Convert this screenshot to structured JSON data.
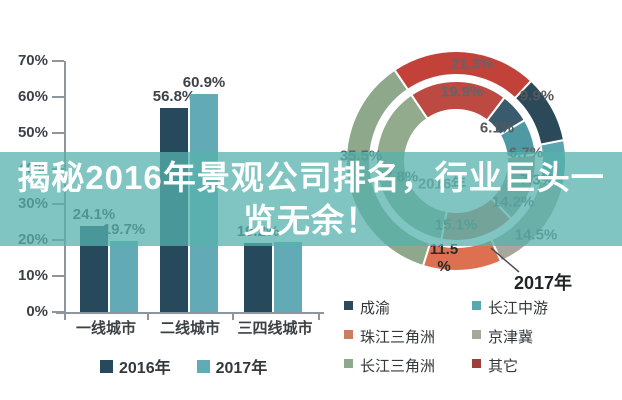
{
  "overlay": {
    "full_title": "揭秘2016年景观公司排名，行业巨头一览无余！",
    "line1": "揭秘2016年景观公司排名，行业巨头一",
    "line2": "览无余！",
    "band_color_rgba": "rgba(85,177,172,0.75)",
    "text_color": "#ffffff"
  },
  "chart_data": [
    {
      "type": "bar",
      "title": "",
      "categories": [
        "一线城市",
        "二线城市",
        "三四线城市"
      ],
      "series": [
        {
          "name": "2016年",
          "color": "#26495b",
          "values": [
            24.1,
            56.8,
            19.2
          ],
          "labels": [
            "24.1%",
            "56.8%",
            "19.2%"
          ]
        },
        {
          "name": "2017年",
          "color": "#63aab7",
          "values": [
            19.7,
            60.9,
            19.5
          ],
          "labels": [
            "19.7%",
            "60.9%",
            ""
          ]
        }
      ],
      "ylim": [
        0,
        70
      ],
      "yticks": [
        "70%",
        "60%",
        "50%",
        "40%",
        "30%",
        "20%",
        "10%",
        "0%"
      ],
      "grid": "off",
      "legend_position": "bottom",
      "legend": [
        {
          "label": "2016年",
          "color": "#26495b"
        },
        {
          "label": "2017年",
          "color": "#63aab7"
        }
      ]
    },
    {
      "type": "pie",
      "subtype": "double_donut",
      "start_angle_deg": -34,
      "categories": [
        "其它",
        "成渝",
        "长江中游",
        "京津冀",
        "珠江三角洲",
        "长江三角洲"
      ],
      "rings": [
        {
          "name": "2017年",
          "position": "outer",
          "values": [
            21.3,
            9.9,
            6.7,
            14.5,
            11.5,
            35.5
          ],
          "colors": [
            "#c2423a",
            "#2c4959",
            "#5aa7b0",
            "#a9a69c",
            "#dd7050",
            "#8da88a"
          ]
        },
        {
          "name": "2016年",
          "position": "inner",
          "values": [
            19.9,
            6.1,
            7.3,
            14.2,
            15.1,
            37.8
          ],
          "colors": [
            "#bd4a42",
            "#3a5b6d",
            "#4f99a4",
            "#a29d91",
            "#cd7c62",
            "#92ab8d"
          ]
        }
      ],
      "labels": {
        "outer_qita": "21.3%",
        "inner_qita": "19.9%",
        "outer_chengyu": "9.9%",
        "inner_chengyu": "6.1%",
        "outer_changjiangzhongyou": "6.7%",
        "inner_changjiangzhongyou": "7.3%",
        "inner_jingjinji": "14.2%",
        "outer_jingjinji": "14.5%",
        "inner_zhujiang": "15.1%",
        "outer_zhujiang_value": "11.5",
        "outer_zhujiang_percent": "%",
        "outer_changsanjiao": "35.5%",
        "inner_changsanjiao": "37.8%"
      },
      "legend": [
        {
          "label": "成渝",
          "color": "#2c4959"
        },
        {
          "label": "珠江三角洲",
          "color": "#cd7c62"
        },
        {
          "label": "长江三角洲",
          "color": "#8da88a"
        },
        {
          "label": "长江中游",
          "color": "#5aa7b0"
        },
        {
          "label": "京津冀",
          "color": "#a9a69c"
        },
        {
          "label": "其它",
          "color": "#9e3f39"
        }
      ]
    }
  ]
}
